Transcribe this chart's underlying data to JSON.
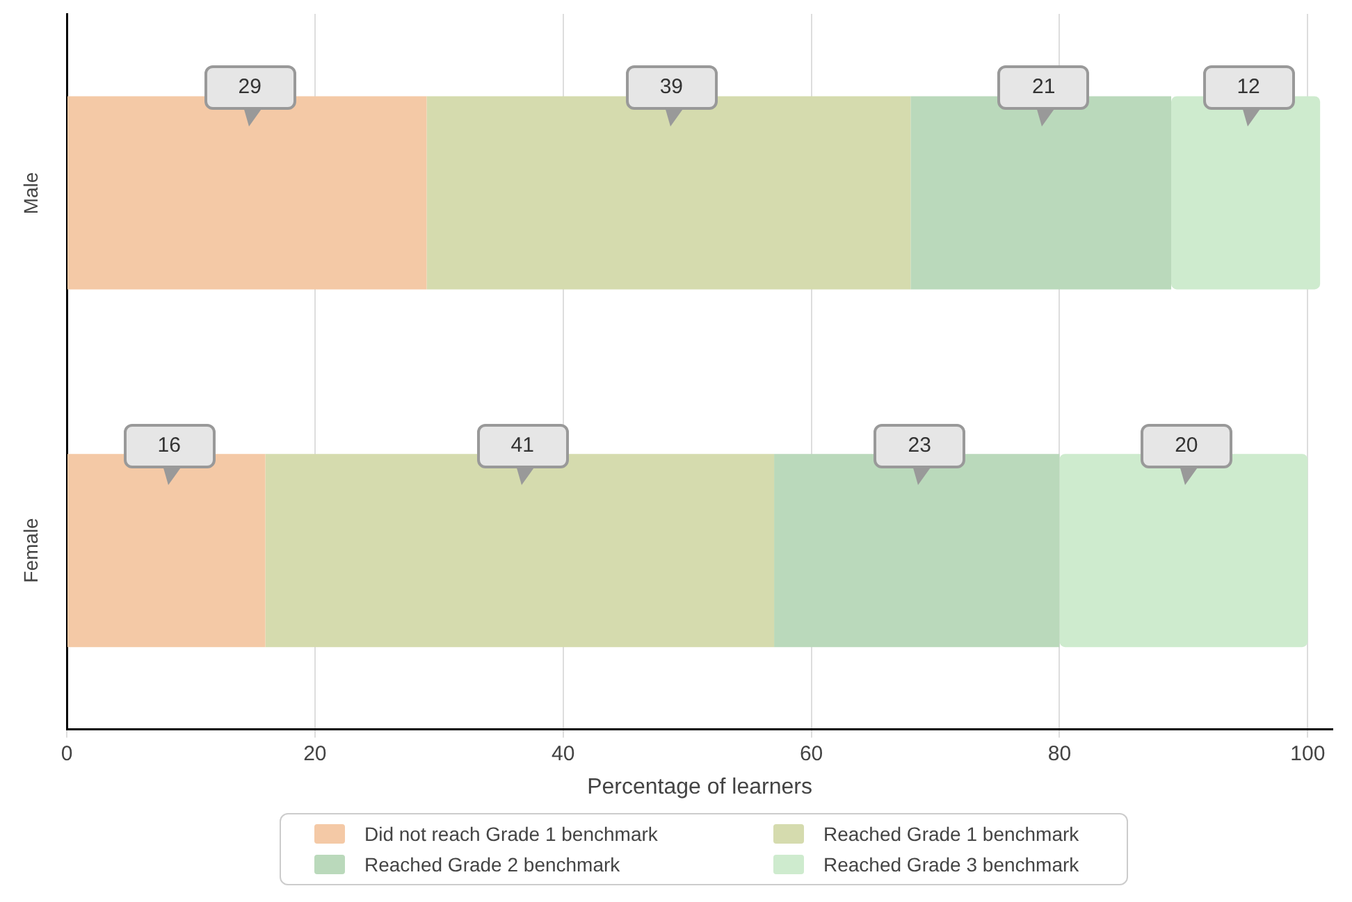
{
  "chart_data": {
    "type": "bar",
    "orientation": "horizontal",
    "stacked": true,
    "categories": [
      "Male",
      "Female"
    ],
    "series": [
      {
        "name": "Did not reach Grade 1 benchmark",
        "color": "#f4c9a6",
        "values": [
          29,
          16
        ]
      },
      {
        "name": "Reached Grade 1 benchmark",
        "color": "#d5dbae",
        "values": [
          39,
          41
        ]
      },
      {
        "name": "Reached Grade 2 benchmark",
        "color": "#bad9bb",
        "values": [
          21,
          23
        ]
      },
      {
        "name": "Reached Grade 3 benchmark",
        "color": "#ceebce",
        "values": [
          12,
          20
        ]
      }
    ],
    "xlabel": "Percentage of learners",
    "xlim": [
      0,
      102
    ],
    "xticks": [
      0,
      20,
      40,
      60,
      80,
      100
    ],
    "grid": "x",
    "legend": "bottom",
    "data_labels": true
  }
}
